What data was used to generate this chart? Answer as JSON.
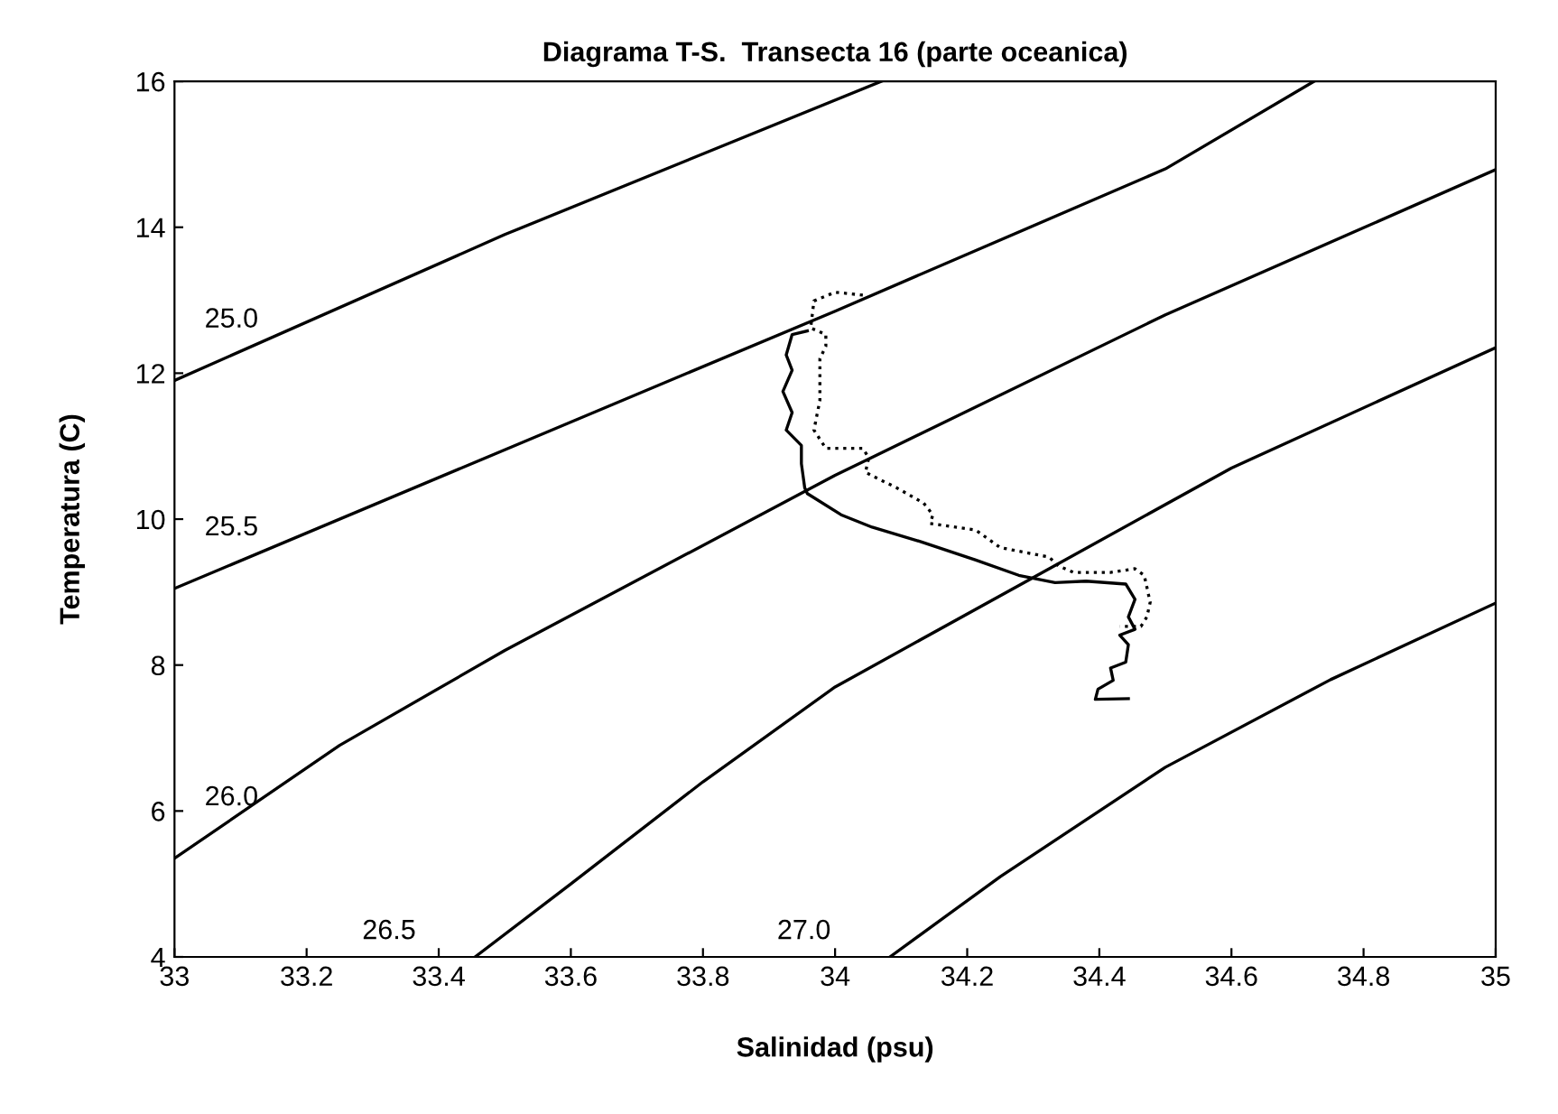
{
  "chart_data": {
    "type": "line",
    "title": "Diagrama T-S.  Transecta 16 (parte oceanica)",
    "xlabel": "Salinidad (psu)",
    "ylabel": "Temperatura (C)",
    "xlim": [
      33,
      35
    ],
    "ylim": [
      4,
      16
    ],
    "xticks": [
      33,
      33.2,
      33.4,
      33.6,
      33.8,
      34,
      34.2,
      34.4,
      34.6,
      34.8,
      35
    ],
    "yticks": [
      4,
      6,
      8,
      10,
      12,
      14,
      16
    ],
    "grid": false,
    "legend": false,
    "series": [
      {
        "name": "25.0",
        "color": "#000000",
        "line_style": "solid",
        "x": [
          33,
          33.5,
          34.07
        ],
        "values": [
          11.9,
          13.9,
          16
        ]
      },
      {
        "name": "25.5",
        "color": "#000000",
        "line_style": "solid",
        "x": [
          33,
          33.5,
          34,
          34.5,
          34.725
        ],
        "values": [
          9.05,
          10.95,
          12.85,
          14.8,
          16
        ]
      },
      {
        "name": "26.0",
        "color": "#000000",
        "line_style": "solid",
        "x": [
          33,
          33.25,
          33.5,
          34,
          34.5,
          35
        ],
        "values": [
          5.35,
          6.9,
          8.2,
          10.6,
          12.8,
          14.79
        ]
      },
      {
        "name": "26.5",
        "color": "#000000",
        "line_style": "solid",
        "x": [
          33.455,
          33.6,
          33.8,
          34.0,
          34.3,
          34.6,
          35
        ],
        "values": [
          4,
          5.0,
          6.4,
          7.7,
          9.2,
          10.7,
          12.35
        ]
      },
      {
        "name": "27.0",
        "color": "#000000",
        "line_style": "solid",
        "x": [
          34.083,
          34.25,
          34.5,
          34.75,
          35
        ],
        "values": [
          4,
          5.1,
          6.6,
          7.8,
          8.85
        ]
      },
      {
        "color": "#000000",
        "line_style": "solid",
        "x": [
          33.958,
          33.935,
          33.926,
          33.935,
          33.921,
          33.935,
          33.926,
          33.949,
          33.949,
          33.954,
          33.958,
          34.009,
          34.056,
          34.13,
          34.213,
          34.278,
          34.333,
          34.38,
          34.44,
          34.454,
          34.444,
          34.454,
          34.431,
          34.444,
          34.44,
          34.417,
          34.421,
          34.398,
          34.394,
          34.444
        ],
        "values": [
          12.58,
          12.53,
          12.25,
          12.04,
          11.75,
          11.46,
          11.22,
          11.01,
          10.76,
          10.43,
          10.35,
          10.06,
          9.89,
          9.69,
          9.44,
          9.23,
          9.13,
          9.15,
          9.11,
          8.9,
          8.66,
          8.49,
          8.41,
          8.28,
          8.04,
          7.96,
          7.79,
          7.67,
          7.53,
          7.54
        ]
      },
      {
        "color": "#000000",
        "line_style": "dotted",
        "x": [
          34.042,
          34.0,
          33.968,
          33.963,
          33.986,
          33.986,
          33.977,
          33.977,
          33.968,
          33.986,
          34.042,
          34.051,
          34.046,
          34.093,
          34.134,
          34.148,
          34.144,
          34.213,
          34.25,
          34.324,
          34.338,
          34.361,
          34.417,
          34.454,
          34.468,
          34.477,
          34.472,
          34.463,
          34.431
        ],
        "values": [
          13.07,
          13.11,
          12.99,
          12.62,
          12.53,
          12.37,
          12.2,
          11.63,
          11.22,
          10.97,
          10.97,
          10.84,
          10.64,
          10.43,
          10.22,
          10.06,
          9.94,
          9.85,
          9.61,
          9.48,
          9.36,
          9.27,
          9.27,
          9.32,
          9.23,
          8.86,
          8.66,
          8.53,
          8.53
        ]
      }
    ]
  }
}
